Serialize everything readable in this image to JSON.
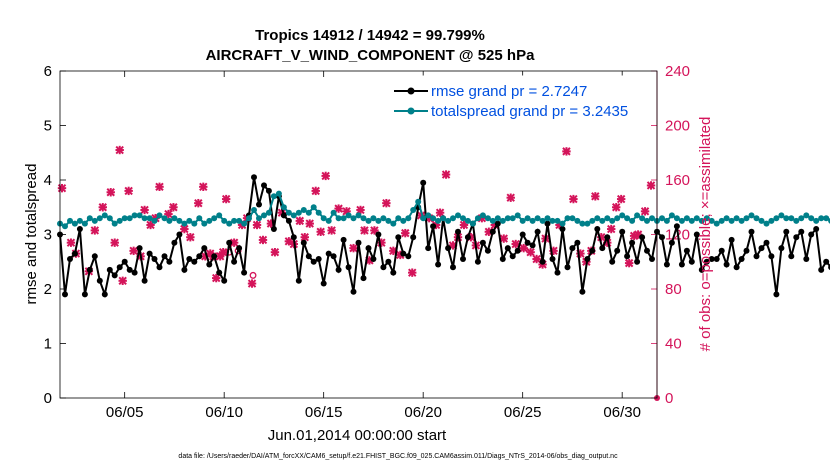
{
  "chart_data": {
    "type": "line",
    "title_line1": "Tropics 14912 / 14942 = 99.799%",
    "title_line2": "AIRCRAFT_V_WIND_COMPONENT @ 525 hPa",
    "xlabel": "Jun.01,2014 00:00:00 start",
    "ylabel_left": "rmse and totalspread",
    "ylabel_right": "# of obs: o=possible; ×=assimilated",
    "footer": "data file: /Users/raeder/DAI/ATM_forcXX/CAM6_setup/f.e21.FHIST_BGC.f09_025.CAM6assim.011/Diags_NTrS_2014-06/obs_diag_output.nc",
    "x_range_days": [
      0.75,
      30.75
    ],
    "x_ticks": [
      {
        "day": 4,
        "label": "06/05"
      },
      {
        "day": 9,
        "label": "06/10"
      },
      {
        "day": 14,
        "label": "06/15"
      },
      {
        "day": 19,
        "label": "06/20"
      },
      {
        "day": 24,
        "label": "06/25"
      },
      {
        "day": 29,
        "label": "06/30"
      }
    ],
    "ylim_left": [
      0,
      6
    ],
    "yticks_left": [
      "0",
      "1",
      "2",
      "3",
      "4",
      "5",
      "6"
    ],
    "ylim_right": [
      0,
      240
    ],
    "yticks_right": [
      "0",
      "40",
      "80",
      "120",
      "160",
      "200",
      "240"
    ],
    "colors": {
      "rmse": "#000000",
      "spread": "#00808a",
      "obs": "#d4145a",
      "right_axis": "#d4145a"
    },
    "legend": [
      {
        "name": "rmse grand pr = 2.7247",
        "color": "#000000"
      },
      {
        "name": "totalspread grand pr = 3.2435",
        "color": "#00808a"
      }
    ],
    "series": [
      {
        "name": "rmse",
        "t0_day": 0.75,
        "dt_day": 0.25,
        "values": [
          3.0,
          1.9,
          2.55,
          2.65,
          3.1,
          1.9,
          2.35,
          2.6,
          2.15,
          1.9,
          2.35,
          2.25,
          2.4,
          2.5,
          2.35,
          2.3,
          2.75,
          2.15,
          2.65,
          2.55,
          2.4,
          2.6,
          2.5,
          2.85,
          3.0,
          2.35,
          2.55,
          2.5,
          2.6,
          2.75,
          2.45,
          2.6,
          2.3,
          2.15,
          2.85,
          2.5,
          2.75,
          2.3,
          3.35,
          4.05,
          3.55,
          3.9,
          3.8,
          3.1,
          3.7,
          3.35,
          3.25,
          2.95,
          2.15,
          2.85,
          2.6,
          2.5,
          2.55,
          2.1,
          2.65,
          2.6,
          2.35,
          2.9,
          2.4,
          1.95,
          2.85,
          2.2,
          2.75,
          2.55,
          3.0,
          2.4,
          2.5,
          2.3,
          2.95,
          2.65,
          2.6,
          2.95,
          3.5,
          3.95,
          2.75,
          3.15,
          2.45,
          3.3,
          2.75,
          2.4,
          3.05,
          2.55,
          2.95,
          3.2,
          2.5,
          2.85,
          2.7,
          3.05,
          3.2,
          2.55,
          2.75,
          2.6,
          2.7,
          3.0,
          2.85,
          2.8,
          3.05,
          2.5,
          3.2,
          2.55,
          2.3,
          3.1,
          2.4,
          2.75,
          2.85,
          1.95,
          2.55,
          2.7,
          3.1,
          2.75,
          2.95,
          2.5,
          2.7,
          3.05,
          2.6,
          2.85,
          2.5,
          2.95,
          2.7,
          2.55,
          3.05,
          2.95,
          2.45,
          2.85,
          3.15,
          2.45,
          2.7,
          2.5,
          3.0,
          2.35,
          2.5,
          2.55,
          2.55,
          2.7,
          2.45,
          2.9,
          2.4,
          2.55,
          2.7,
          3.05,
          2.6,
          2.75,
          2.85,
          2.6,
          1.9,
          2.75,
          3.05,
          2.6,
          2.95,
          3.05,
          2.55,
          3.0,
          3.1,
          2.35,
          2.5,
          2.4,
          2.75,
          3.0,
          2.8,
          3.1,
          3.2,
          3.2
        ]
      },
      {
        "name": "totalspread",
        "t0_day": 0.75,
        "dt_day": 0.25,
        "values": [
          3.2,
          3.15,
          3.25,
          3.2,
          3.25,
          3.2,
          3.3,
          3.25,
          3.3,
          3.35,
          3.3,
          3.2,
          3.25,
          3.3,
          3.3,
          3.35,
          3.35,
          3.3,
          3.3,
          3.25,
          3.35,
          3.3,
          3.25,
          3.3,
          3.25,
          3.2,
          3.25,
          3.2,
          3.3,
          3.2,
          3.25,
          3.3,
          3.35,
          3.25,
          3.2,
          3.25,
          3.25,
          3.2,
          3.3,
          3.45,
          3.3,
          3.35,
          3.4,
          3.7,
          3.75,
          3.5,
          3.4,
          3.35,
          3.4,
          3.45,
          3.4,
          3.5,
          3.4,
          3.3,
          3.25,
          3.4,
          3.3,
          3.3,
          3.35,
          3.3,
          3.35,
          3.3,
          3.25,
          3.3,
          3.25,
          3.3,
          3.25,
          3.2,
          3.3,
          3.25,
          3.3,
          3.45,
          3.6,
          3.3,
          3.35,
          3.3,
          3.25,
          3.3,
          3.25,
          3.3,
          3.35,
          3.3,
          3.25,
          3.2,
          3.3,
          3.35,
          3.3,
          3.25,
          3.3,
          3.25,
          3.3,
          3.3,
          3.35,
          3.25,
          3.3,
          3.25,
          3.3,
          3.25,
          3.3,
          3.25,
          3.25,
          3.2,
          3.3,
          3.3,
          3.25,
          3.2,
          3.2,
          3.25,
          3.3,
          3.25,
          3.3,
          3.25,
          3.3,
          3.35,
          3.3,
          3.25,
          3.35,
          3.3,
          3.25,
          3.3,
          3.25,
          3.3,
          3.25,
          3.35,
          3.3,
          3.25,
          3.3,
          3.25,
          3.3,
          3.25,
          3.3,
          3.25,
          3.2,
          3.25,
          3.3,
          3.25,
          3.3,
          3.25,
          3.3,
          3.35,
          3.3,
          3.25,
          3.2,
          3.25,
          3.3,
          3.35,
          3.3,
          3.3,
          3.25,
          3.3,
          3.35,
          3.3,
          3.25,
          3.3,
          3.3,
          3.25,
          3.3,
          3.35,
          3.3,
          3.25,
          3.25
        ]
      }
    ],
    "obs_assimilated": [
      [
        0.85,
        154
      ],
      [
        1.3,
        114
      ],
      [
        1.55,
        106
      ],
      [
        2.2,
        93
      ],
      [
        2.5,
        123
      ],
      [
        2.9,
        140
      ],
      [
        3.3,
        151
      ],
      [
        3.5,
        114
      ],
      [
        3.75,
        182
      ],
      [
        3.9,
        86
      ],
      [
        4.2,
        152
      ],
      [
        4.45,
        108
      ],
      [
        4.8,
        104
      ],
      [
        5.0,
        138
      ],
      [
        5.3,
        127
      ],
      [
        5.55,
        132
      ],
      [
        5.75,
        155
      ],
      [
        6.2,
        135
      ],
      [
        6.45,
        140
      ],
      [
        7.0,
        124
      ],
      [
        7.3,
        118
      ],
      [
        7.7,
        143
      ],
      [
        7.95,
        155
      ],
      [
        8.05,
        104
      ],
      [
        8.3,
        106
      ],
      [
        8.45,
        104
      ],
      [
        8.6,
        88
      ],
      [
        8.8,
        104
      ],
      [
        8.95,
        107
      ],
      [
        9.1,
        146
      ],
      [
        9.5,
        114
      ],
      [
        9.9,
        127
      ],
      [
        10.15,
        132
      ],
      [
        10.4,
        84
      ],
      [
        10.65,
        127
      ],
      [
        10.95,
        116
      ],
      [
        11.35,
        128
      ],
      [
        11.55,
        107
      ],
      [
        11.9,
        136
      ],
      [
        12.25,
        115
      ],
      [
        12.5,
        113
      ],
      [
        12.8,
        130
      ],
      [
        13.05,
        118
      ],
      [
        13.3,
        128
      ],
      [
        13.6,
        152
      ],
      [
        13.85,
        122
      ],
      [
        14.1,
        163
      ],
      [
        14.4,
        123
      ],
      [
        14.75,
        139
      ],
      [
        15.15,
        137
      ],
      [
        15.5,
        110
      ],
      [
        15.85,
        138
      ],
      [
        16.05,
        123
      ],
      [
        16.3,
        101
      ],
      [
        16.55,
        123
      ],
      [
        16.9,
        114
      ],
      [
        17.15,
        143
      ],
      [
        17.5,
        108
      ],
      [
        17.85,
        105
      ],
      [
        18.1,
        121
      ],
      [
        18.45,
        92
      ],
      [
        18.9,
        134
      ],
      [
        19.3,
        132
      ],
      [
        19.65,
        127
      ],
      [
        19.85,
        136
      ],
      [
        20.15,
        164
      ],
      [
        20.5,
        112
      ],
      [
        20.75,
        118
      ],
      [
        21.05,
        127
      ],
      [
        21.4,
        118
      ],
      [
        21.65,
        112
      ],
      [
        21.95,
        132
      ],
      [
        22.3,
        122
      ],
      [
        22.6,
        127
      ],
      [
        23.05,
        117
      ],
      [
        23.4,
        147
      ],
      [
        23.65,
        113
      ],
      [
        24.05,
        110
      ],
      [
        24.4,
        107
      ],
      [
        24.7,
        102
      ],
      [
        25.0,
        98
      ],
      [
        25.15,
        117
      ],
      [
        25.55,
        108
      ],
      [
        25.85,
        127
      ],
      [
        26.2,
        181
      ],
      [
        26.55,
        146
      ],
      [
        26.9,
        106
      ],
      [
        27.2,
        100
      ],
      [
        27.45,
        108
      ],
      [
        27.65,
        148
      ],
      [
        27.95,
        118
      ],
      [
        28.25,
        114
      ],
      [
        28.45,
        124
      ],
      [
        28.7,
        140
      ],
      [
        28.95,
        146
      ],
      [
        29.35,
        99
      ],
      [
        29.6,
        119
      ],
      [
        29.8,
        120
      ],
      [
        30.15,
        137
      ],
      [
        30.45,
        156
      ]
    ],
    "obs_possible": [
      [
        8.85,
        105
      ],
      [
        9.25,
        107
      ],
      [
        9.7,
        108
      ],
      [
        10.45,
        90
      ]
    ]
  }
}
